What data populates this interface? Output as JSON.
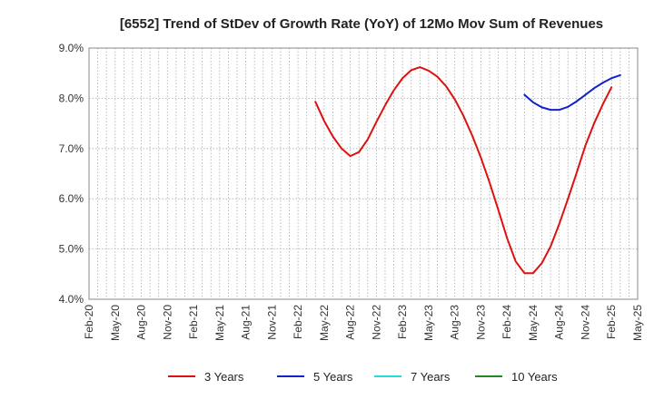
{
  "chart_data": {
    "type": "line",
    "title": "[6552]  Trend of StDev of Growth Rate (YoY) of 12Mo Mov Sum of Revenues",
    "xlabel": "",
    "ylabel": "",
    "ylim": [
      4.0,
      9.0
    ],
    "y_ticks": [
      "4.0%",
      "5.0%",
      "6.0%",
      "7.0%",
      "8.0%",
      "9.0%"
    ],
    "y_tick_values": [
      4.0,
      5.0,
      6.0,
      7.0,
      8.0,
      9.0
    ],
    "x_ticks": [
      "Feb-20",
      "May-20",
      "Aug-20",
      "Nov-20",
      "Feb-21",
      "May-21",
      "Aug-21",
      "Nov-21",
      "Feb-22",
      "May-22",
      "Aug-22",
      "Nov-22",
      "Feb-23",
      "May-23",
      "Aug-23",
      "Nov-23",
      "Feb-24",
      "May-24",
      "Aug-24",
      "Nov-24",
      "Feb-25",
      "May-25"
    ],
    "x_start": "Feb-20",
    "x_end": "May-25",
    "grid": true,
    "legend_position": "bottom",
    "series": [
      {
        "name": "3 Years",
        "color": "#dd1111",
        "start_month": "Apr-22",
        "values": [
          7.93,
          7.55,
          7.24,
          7.0,
          6.85,
          6.93,
          7.18,
          7.53,
          7.86,
          8.16,
          8.4,
          8.56,
          8.62,
          8.55,
          8.43,
          8.24,
          7.98,
          7.65,
          7.26,
          6.82,
          6.32,
          5.78,
          5.22,
          4.75,
          4.52,
          4.52,
          4.72,
          5.05,
          5.5,
          6.0,
          6.52,
          7.06,
          7.5,
          7.88,
          8.22
        ]
      },
      {
        "name": "5 Years",
        "color": "#1122cc",
        "start_month": "Apr-24",
        "values": [
          8.07,
          7.92,
          7.82,
          7.77,
          7.77,
          7.83,
          7.94,
          8.07,
          8.2,
          8.31,
          8.4,
          8.46
        ]
      },
      {
        "name": "7 Years",
        "color": "#22dddd",
        "start_month": "",
        "values": []
      },
      {
        "name": "10 Years",
        "color": "#228822",
        "start_month": "",
        "values": []
      }
    ]
  }
}
